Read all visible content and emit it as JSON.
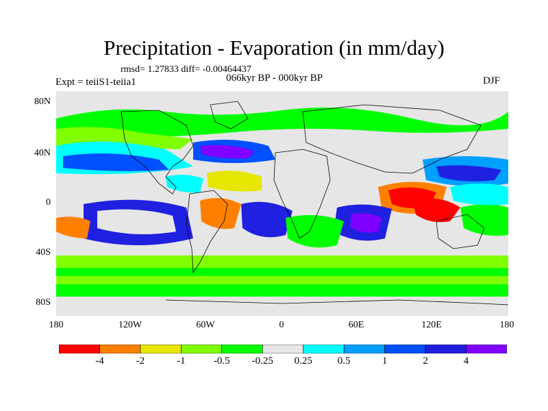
{
  "title": "Precipitation - Evaporation (in mm/day)",
  "stats": "rmsd= 1.27833 diff= -0.00464437",
  "expt": "Expt = teiiS1-teiia1",
  "period": "066kyr BP - 000kyr BP",
  "season": "DJF",
  "lat_labels": [
    "80N",
    "40N",
    "0",
    "40S",
    "80S"
  ],
  "lon_labels": [
    "180",
    "120W",
    "60W",
    "0",
    "60E",
    "120E",
    "180"
  ],
  "colorbar": {
    "labels": [
      "-4",
      "-2",
      "-1",
      "-0.5",
      "-0.25",
      "0.25",
      "0.5",
      "1",
      "2",
      "4"
    ],
    "colors": [
      "#ff0000",
      "#ff8000",
      "#e6e600",
      "#80ff00",
      "#00ff00",
      "#e6e6e6",
      "#00ffff",
      "#00a0ff",
      "#0050ff",
      "#2020e0",
      "#8000ff"
    ]
  }
}
